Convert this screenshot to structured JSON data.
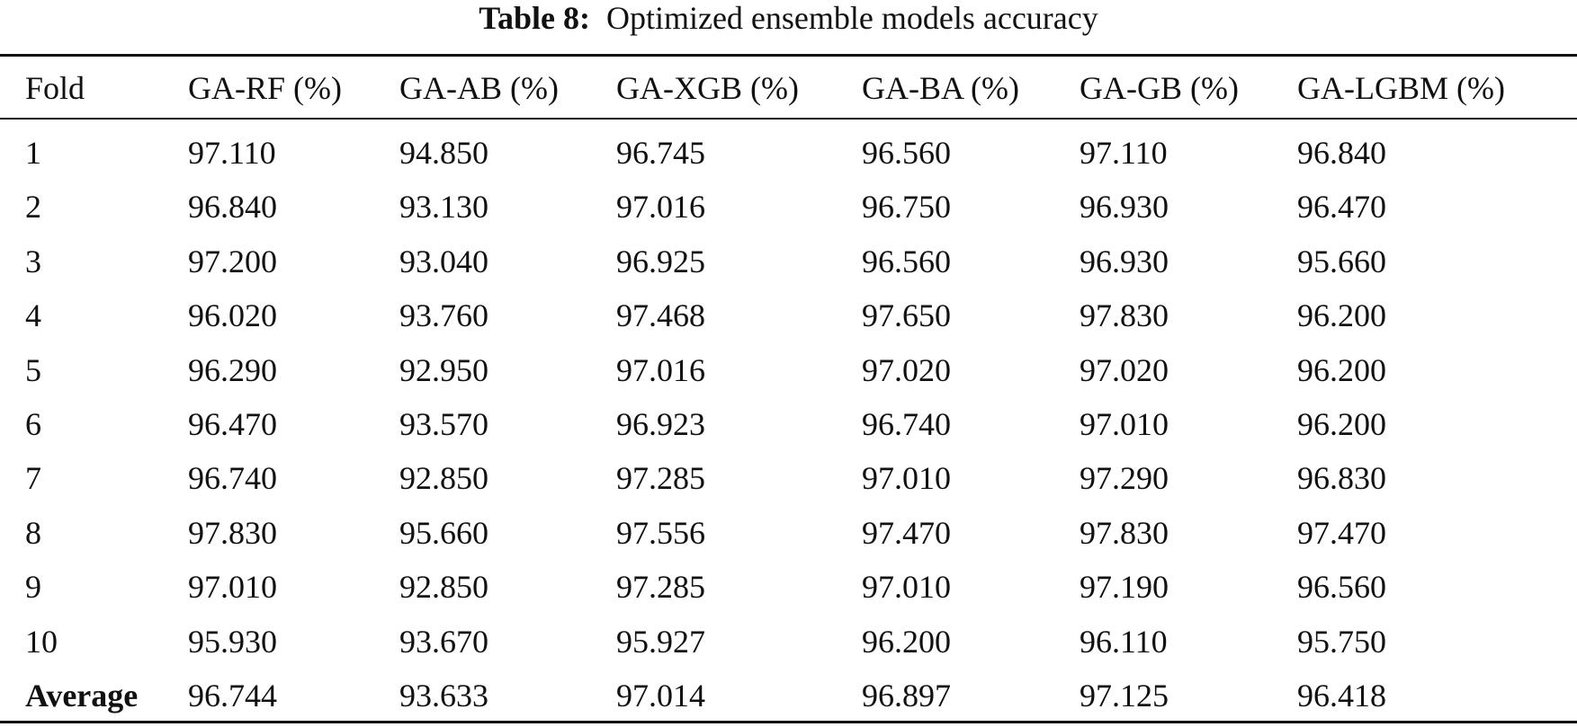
{
  "caption": {
    "label": "Table 8:",
    "text": "Optimized ensemble models accuracy"
  },
  "table": {
    "header": [
      "Fold",
      "GA-RF (%)",
      "GA-AB (%)",
      "GA-XGB (%)",
      "GA-BA (%)",
      "GA-GB (%)",
      "GA-LGBM (%)"
    ],
    "rows": [
      [
        "1",
        "97.110",
        "94.850",
        "96.745",
        "96.560",
        "97.110",
        "96.840"
      ],
      [
        "2",
        "96.840",
        "93.130",
        "97.016",
        "96.750",
        "96.930",
        "96.470"
      ],
      [
        "3",
        "97.200",
        "93.040",
        "96.925",
        "96.560",
        "96.930",
        "95.660"
      ],
      [
        "4",
        "96.020",
        "93.760",
        "97.468",
        "97.650",
        "97.830",
        "96.200"
      ],
      [
        "5",
        "96.290",
        "92.950",
        "97.016",
        "97.020",
        "97.020",
        "96.200"
      ],
      [
        "6",
        "96.470",
        "93.570",
        "96.923",
        "96.740",
        "97.010",
        "96.200"
      ],
      [
        "7",
        "96.740",
        "92.850",
        "97.285",
        "97.010",
        "97.290",
        "96.830"
      ],
      [
        "8",
        "97.830",
        "95.660",
        "97.556",
        "97.470",
        "97.830",
        "97.470"
      ],
      [
        "9",
        "97.010",
        "92.850",
        "97.285",
        "97.010",
        "97.190",
        "96.560"
      ],
      [
        "10",
        "95.930",
        "93.670",
        "95.927",
        "96.200",
        "96.110",
        "95.750"
      ],
      [
        "Average",
        "96.744",
        "93.633",
        "97.014",
        "96.897",
        "97.125",
        "96.418"
      ]
    ]
  }
}
